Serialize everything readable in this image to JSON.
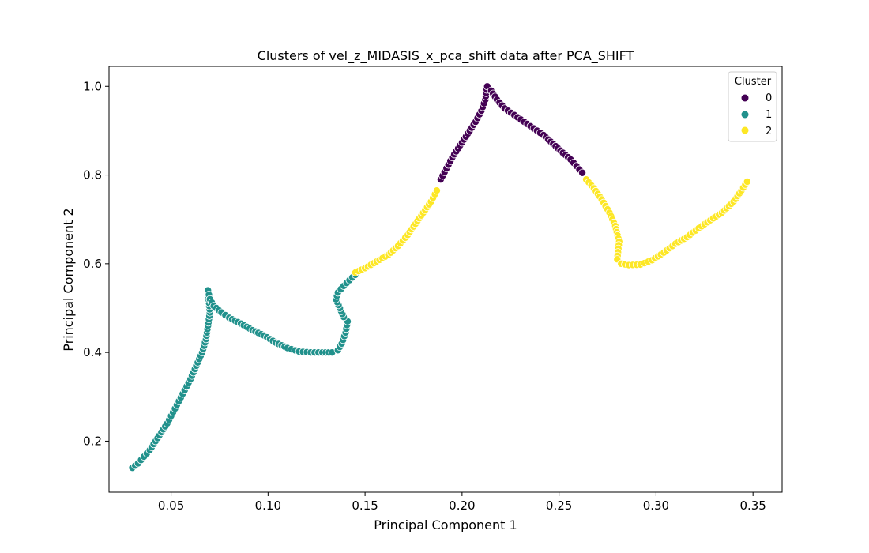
{
  "chart_data": {
    "type": "scatter",
    "title": "Clusters of vel_z_MIDASIS_x_pca_shift data after PCA_SHIFT",
    "xlabel": "Principal Component 1",
    "ylabel": "Principal Component 2",
    "xlim": [
      0.018,
      0.365
    ],
    "ylim": [
      0.085,
      1.045
    ],
    "xticks": [
      0.05,
      0.1,
      0.15,
      0.2,
      0.25,
      0.3,
      0.35
    ],
    "xtick_labels": [
      "0.05",
      "0.10",
      "0.15",
      "0.20",
      "0.25",
      "0.30",
      "0.35"
    ],
    "yticks": [
      0.2,
      0.4,
      0.6,
      0.8,
      1.0
    ],
    "ytick_labels": [
      "0.2",
      "0.4",
      "0.6",
      "0.8",
      "1.0"
    ],
    "grid": false,
    "legend": {
      "title": "Cluster",
      "position": "top-right",
      "entries": [
        {
          "label": "0",
          "color": "#440154"
        },
        {
          "label": "1",
          "color": "#21918c"
        },
        {
          "label": "2",
          "color": "#fde725"
        }
      ]
    },
    "series": [
      {
        "name": "1",
        "color": "#21918c",
        "x": [
          0.03,
          0.033,
          0.036,
          0.039,
          0.042,
          0.045,
          0.048,
          0.051,
          0.054,
          0.057,
          0.06,
          0.063,
          0.066,
          0.068,
          0.069,
          0.07,
          0.069,
          0.07,
          0.072,
          0.076,
          0.08,
          0.086,
          0.092,
          0.098,
          0.104,
          0.11,
          0.116,
          0.122,
          0.128,
          0.133,
          0.136,
          0.138,
          0.14,
          0.141,
          0.139,
          0.137,
          0.135,
          0.136,
          0.139,
          0.142,
          0.145
        ],
        "y": [
          0.14,
          0.15,
          0.165,
          0.18,
          0.2,
          0.22,
          0.24,
          0.265,
          0.29,
          0.315,
          0.34,
          0.37,
          0.4,
          0.43,
          0.46,
          0.49,
          0.54,
          0.52,
          0.505,
          0.49,
          0.478,
          0.465,
          0.45,
          0.438,
          0.422,
          0.41,
          0.402,
          0.4,
          0.4,
          0.4,
          0.405,
          0.42,
          0.445,
          0.47,
          0.48,
          0.5,
          0.52,
          0.535,
          0.55,
          0.563,
          0.575
        ]
      },
      {
        "name": "2",
        "color": "#fde725",
        "x": [
          0.145,
          0.15,
          0.156,
          0.162,
          0.167,
          0.172,
          0.176,
          0.18,
          0.184,
          0.187
        ],
        "y": [
          0.58,
          0.59,
          0.605,
          0.62,
          0.64,
          0.665,
          0.69,
          0.715,
          0.74,
          0.765
        ]
      },
      {
        "name": "0",
        "color": "#440154",
        "x": [
          0.189,
          0.192,
          0.195,
          0.198,
          0.201,
          0.204,
          0.207,
          0.21,
          0.212,
          0.213,
          0.215,
          0.218,
          0.222,
          0.227,
          0.232,
          0.237,
          0.242,
          0.247,
          0.252,
          0.256,
          0.259,
          0.262
        ],
        "y": [
          0.79,
          0.815,
          0.84,
          0.86,
          0.88,
          0.9,
          0.92,
          0.945,
          0.97,
          1.0,
          0.99,
          0.97,
          0.95,
          0.935,
          0.92,
          0.905,
          0.89,
          0.87,
          0.85,
          0.835,
          0.82,
          0.805
        ]
      },
      {
        "name": "2",
        "color": "#fde725",
        "x": [
          0.264,
          0.268,
          0.272,
          0.276,
          0.279,
          0.281,
          0.28,
          0.282,
          0.286,
          0.292,
          0.298,
          0.304,
          0.31,
          0.316,
          0.322,
          0.328,
          0.334,
          0.34,
          0.344,
          0.347
        ],
        "y": [
          0.79,
          0.77,
          0.745,
          0.715,
          0.685,
          0.65,
          0.61,
          0.6,
          0.597,
          0.598,
          0.608,
          0.625,
          0.645,
          0.66,
          0.68,
          0.698,
          0.715,
          0.74,
          0.765,
          0.785
        ]
      }
    ]
  }
}
